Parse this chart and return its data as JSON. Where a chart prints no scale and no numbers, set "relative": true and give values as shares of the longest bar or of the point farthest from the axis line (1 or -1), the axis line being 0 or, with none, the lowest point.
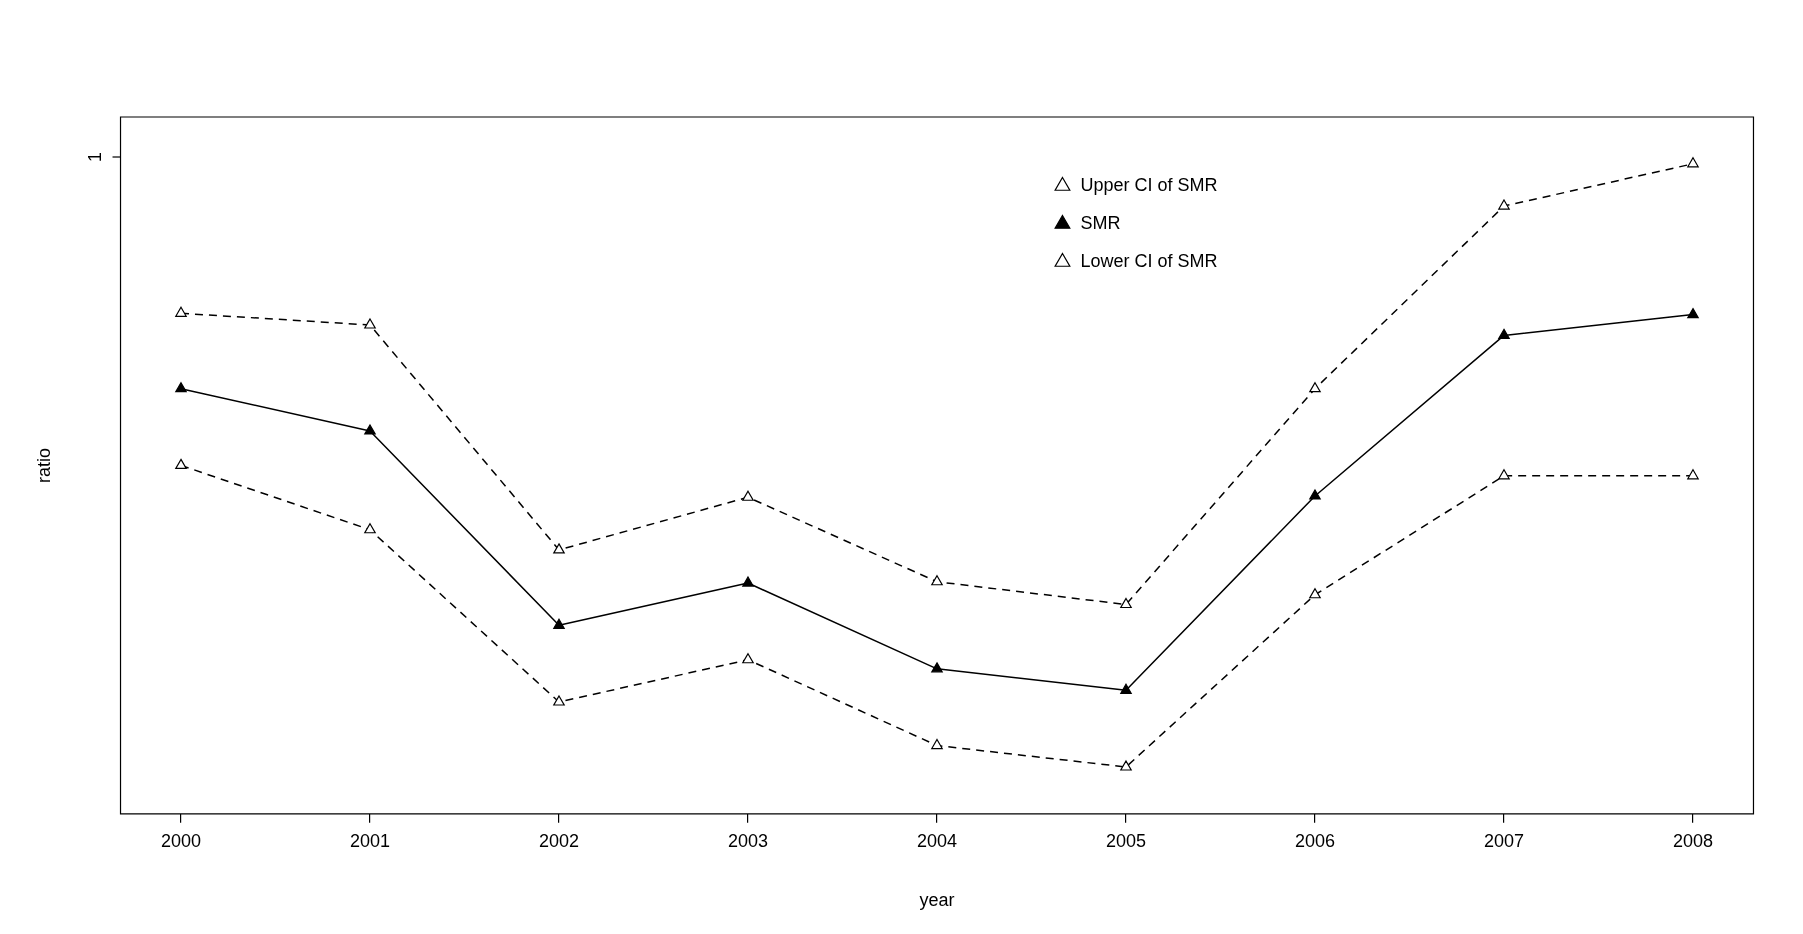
{
  "chart_data": {
    "type": "line",
    "relative": true,
    "xlabel": "year",
    "ylabel": "ratio",
    "categories": [
      "2000",
      "2001",
      "2002",
      "2003",
      "2004",
      "2005",
      "2006",
      "2007",
      "2008"
    ],
    "series": [
      {
        "name": "Upper CI of SMR",
        "color": "#000000",
        "line_style": "dashed",
        "marker": "triangle",
        "values": [
          0.77,
          0.752,
          0.406,
          0.487,
          0.357,
          0.322,
          0.654,
          0.935,
          1
        ]
      },
      {
        "name": "SMR",
        "color": "#000000",
        "line_style": "solid",
        "marker": "triangle",
        "values": [
          0.654,
          0.589,
          0.29,
          0.355,
          0.223,
          0.19,
          0.489,
          0.736,
          0.768
        ]
      },
      {
        "name": "Lower CI of SMR",
        "color": "#000000",
        "line_style": "dashed",
        "marker": "triangle",
        "values": [
          0.536,
          0.437,
          0.172,
          0.237,
          0.105,
          0.072,
          0.337,
          0.52,
          0.52
        ]
      }
    ],
    "annotations": [
      "1"
    ],
    "legend": "top right"
  }
}
